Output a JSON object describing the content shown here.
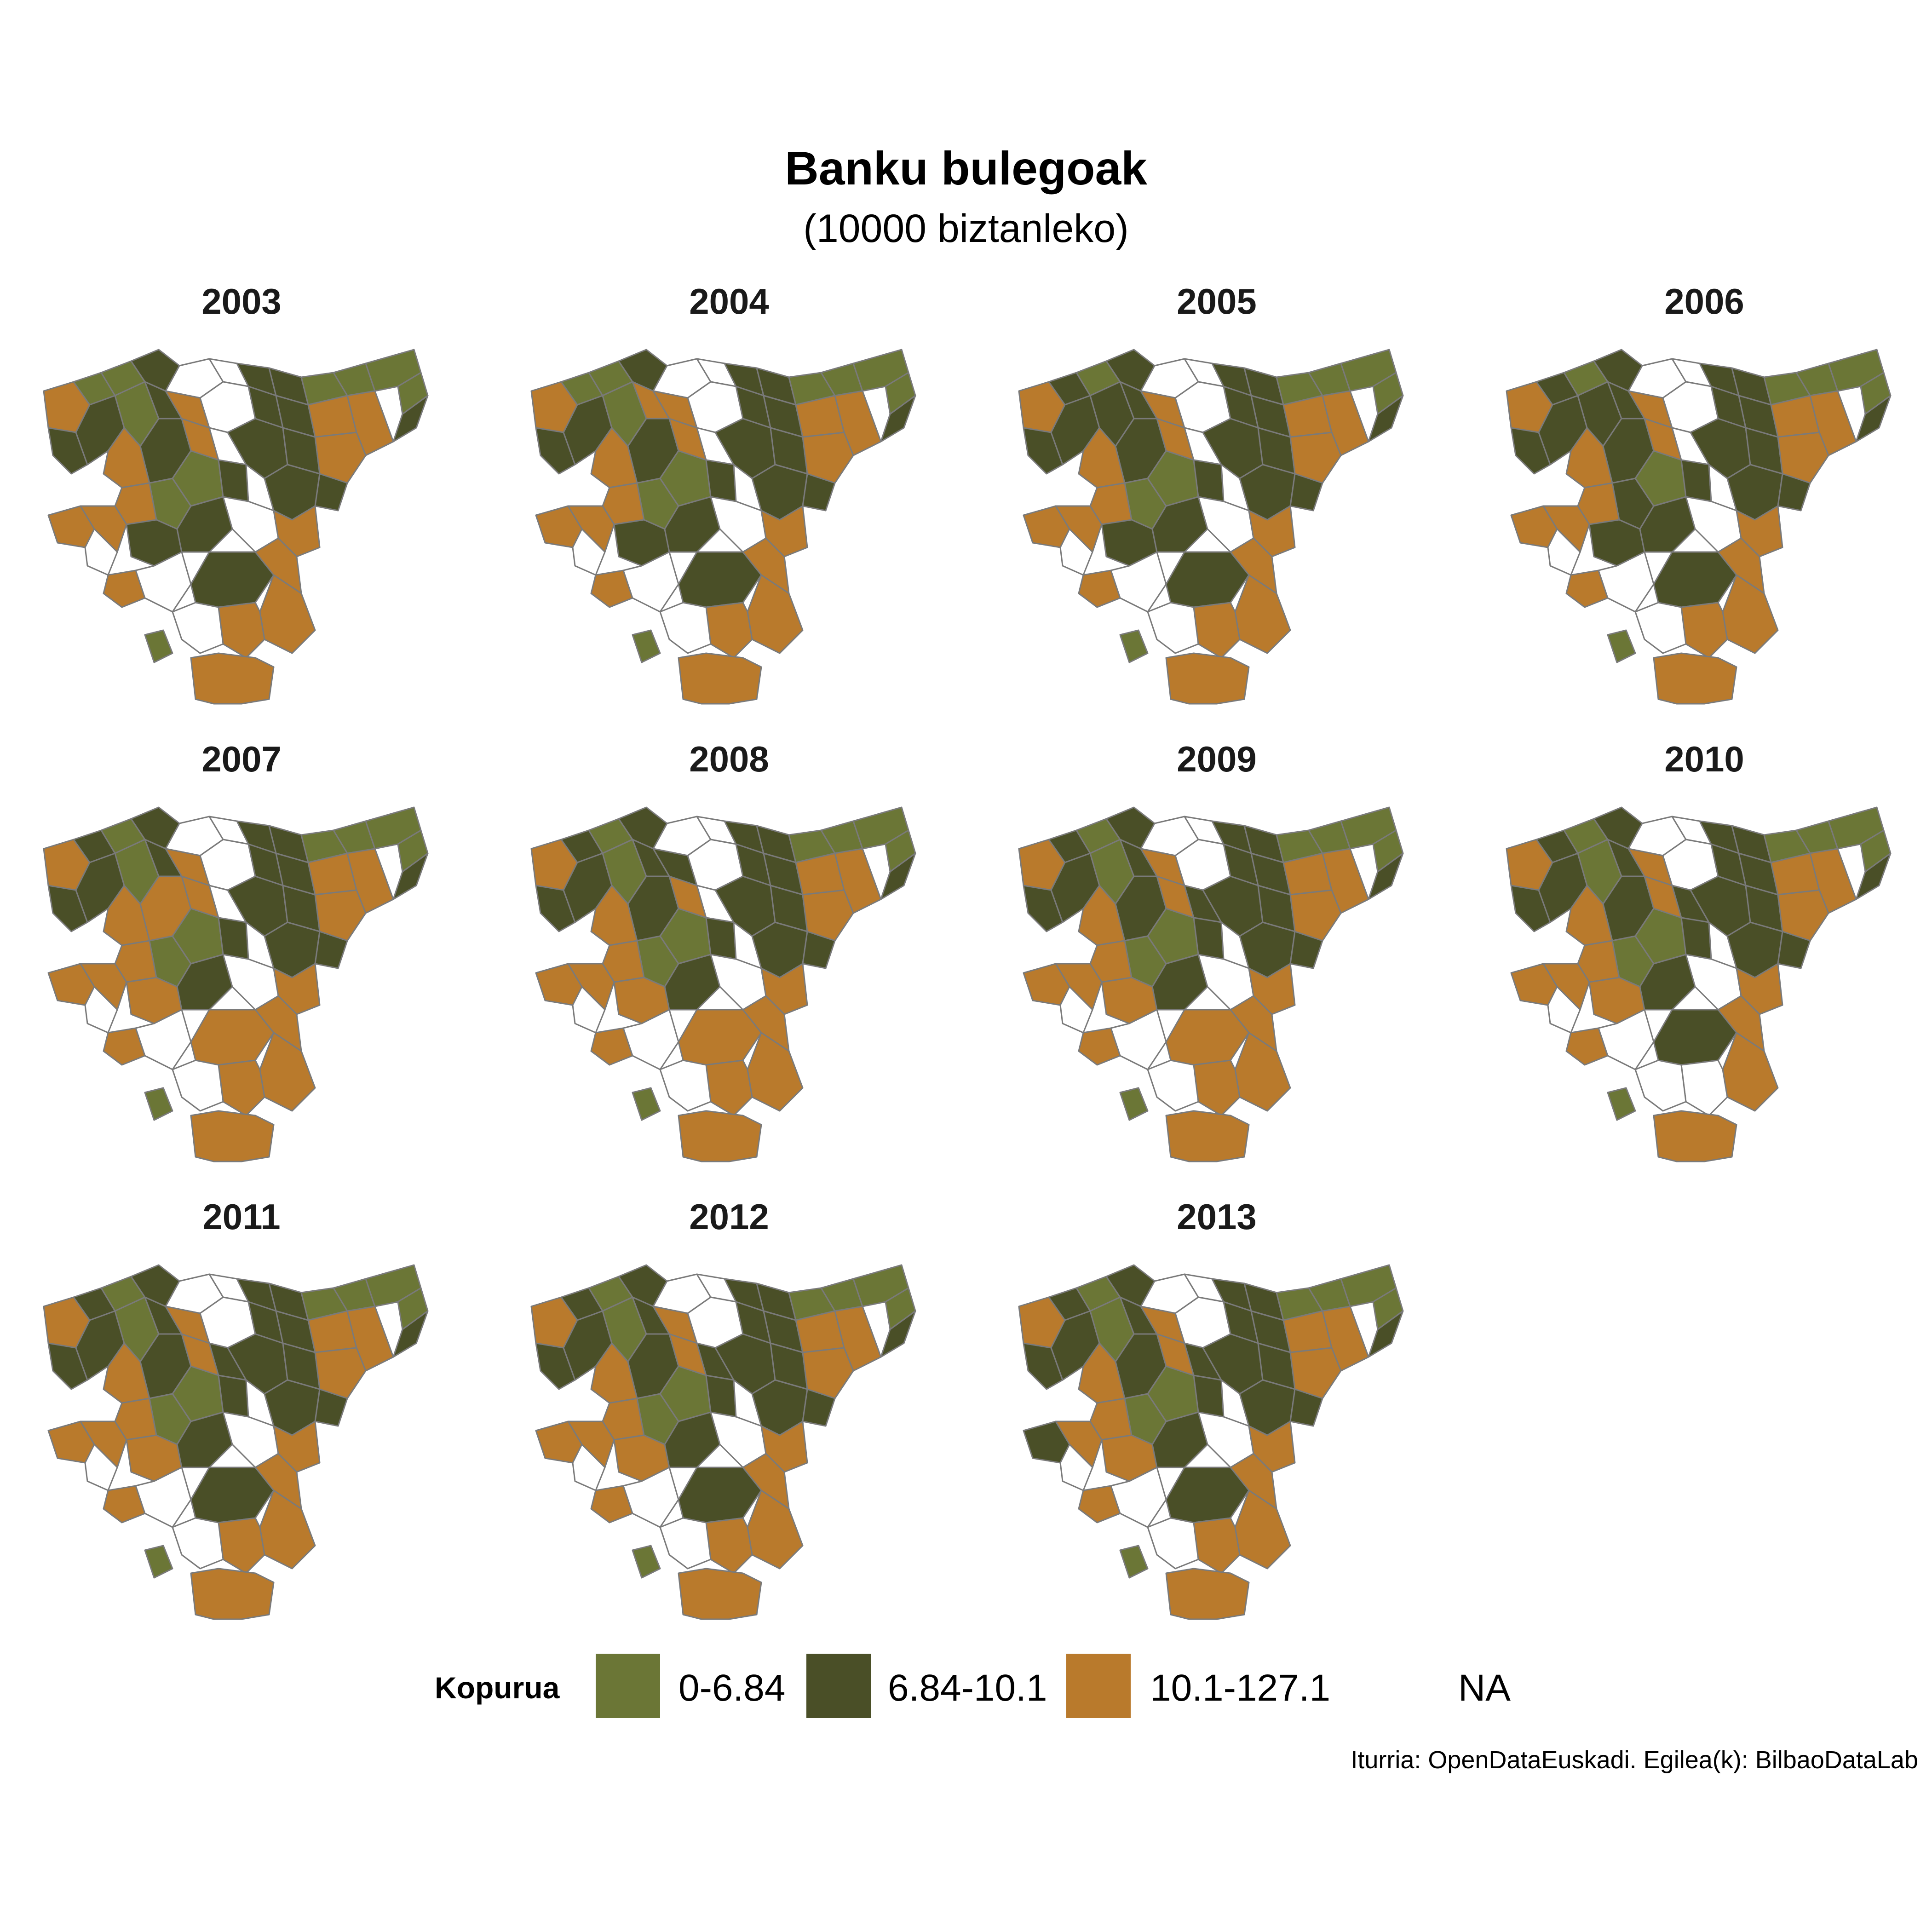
{
  "title": "Banku bulegoak",
  "subtitle": "(10000 biztanleko)",
  "colors": {
    "low": "#6b7636",
    "mid": "#4a4f27",
    "high": "#b97a2c",
    "na": "#ffffff",
    "border": "#7a7a7a"
  },
  "legend": {
    "title": "Kopurua",
    "items": [
      {
        "label": "0-6.84",
        "color": "#6b7636"
      },
      {
        "label": "6.84-10.1",
        "color": "#4a4f27"
      },
      {
        "label": "10.1-127.12",
        "color": "#b97a2c"
      },
      {
        "label": "NA",
        "color": "#ffffff"
      }
    ]
  },
  "caption": "Iturria: OpenDataEuskadi. Egilea(k): BilbaoDataLab",
  "panels": [
    {
      "year": "2003"
    },
    {
      "year": "2004"
    },
    {
      "year": "2005"
    },
    {
      "year": "2006"
    },
    {
      "year": "2007"
    },
    {
      "year": "2008"
    },
    {
      "year": "2009"
    },
    {
      "year": "2010"
    },
    {
      "year": "2011"
    },
    {
      "year": "2012"
    },
    {
      "year": "2013"
    }
  ]
}
